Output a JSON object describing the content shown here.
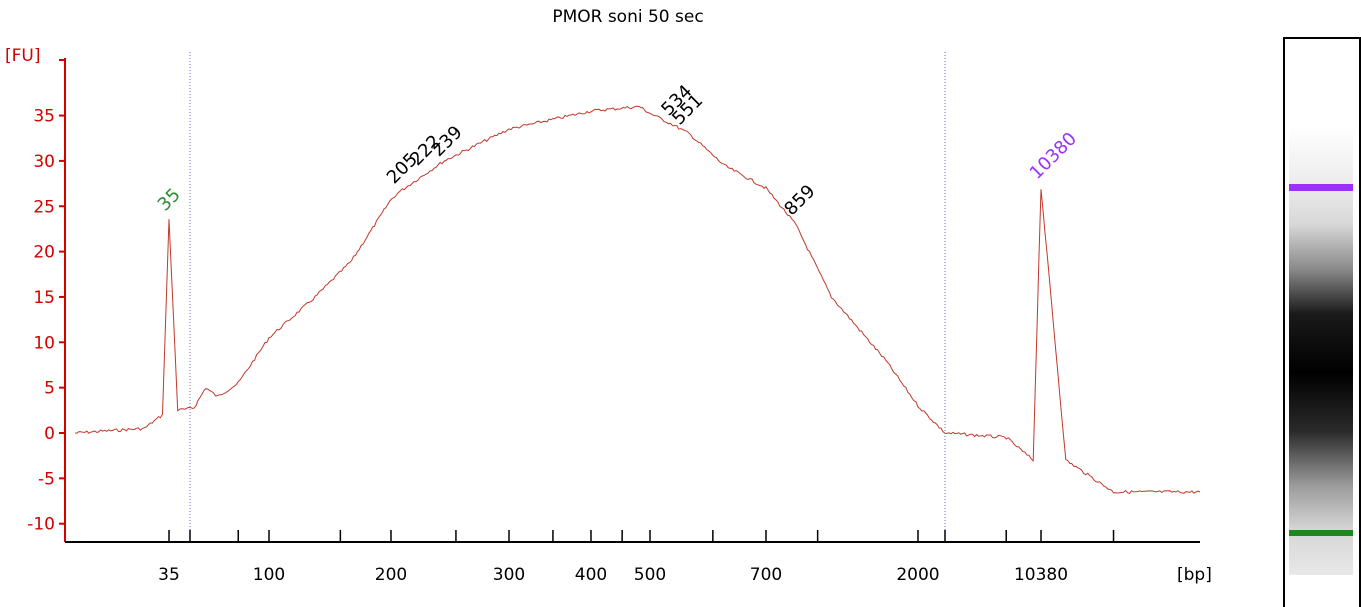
{
  "chart_data": {
    "type": "line",
    "title": "PMOR soni 50 sec",
    "ylabel": "[FU]",
    "xlabel": "[bp]",
    "ylim": [
      -11,
      38
    ],
    "yticks": [
      {
        "value": 35,
        "label": "35"
      },
      {
        "value": 30,
        "label": "30"
      },
      {
        "value": 25,
        "label": "25"
      },
      {
        "value": 20,
        "label": "20"
      },
      {
        "value": 15,
        "label": "15"
      },
      {
        "value": 10,
        "label": "10"
      },
      {
        "value": 5,
        "label": "5"
      },
      {
        "value": 0,
        "label": "0"
      },
      {
        "value": -5,
        "label": "-5"
      },
      {
        "value": -10,
        "label": "-10"
      }
    ],
    "xticks": [
      {
        "bp": 35,
        "label": "35"
      },
      {
        "bp": 100,
        "label": "100"
      },
      {
        "bp": 200,
        "label": "200"
      },
      {
        "bp": 300,
        "label": "300"
      },
      {
        "bp": 400,
        "label": "400"
      },
      {
        "bp": 500,
        "label": "500"
      },
      {
        "bp": 700,
        "label": "700"
      },
      {
        "bp": 2000,
        "label": "2000"
      },
      {
        "bp": 10380,
        "label": "10380"
      }
    ],
    "x_axis_scale": "bp ladder (nonlinear)",
    "region_markers_bp": [
      40,
      3500
    ],
    "series": [
      {
        "color": "#c0392b",
        "points": [
          {
            "bp": 15,
            "fu": 0.0
          },
          {
            "bp": 28,
            "fu": 0.5
          },
          {
            "bp": 33,
            "fu": 2.0
          },
          {
            "bp": 35,
            "fu": 23.5
          },
          {
            "bp": 37,
            "fu": 2.5
          },
          {
            "bp": 42,
            "fu": 2.8
          },
          {
            "bp": 48,
            "fu": 5.0
          },
          {
            "bp": 55,
            "fu": 4.0
          },
          {
            "bp": 70,
            "fu": 5.5
          },
          {
            "bp": 100,
            "fu": 10.5
          },
          {
            "bp": 130,
            "fu": 15.0
          },
          {
            "bp": 160,
            "fu": 19.0
          },
          {
            "bp": 205,
            "fu": 26.5
          },
          {
            "bp": 240,
            "fu": 30.0
          },
          {
            "bp": 300,
            "fu": 33.5
          },
          {
            "bp": 400,
            "fu": 35.5
          },
          {
            "bp": 480,
            "fu": 36.0
          },
          {
            "bp": 534,
            "fu": 34.0
          },
          {
            "bp": 560,
            "fu": 33.0
          },
          {
            "bp": 620,
            "fu": 29.5
          },
          {
            "bp": 700,
            "fu": 27.0
          },
          {
            "bp": 859,
            "fu": 23.0
          },
          {
            "bp": 1100,
            "fu": 15.0
          },
          {
            "bp": 1600,
            "fu": 8.0
          },
          {
            "bp": 2000,
            "fu": 3.0
          },
          {
            "bp": 3500,
            "fu": 0.0
          },
          {
            "bp": 7000,
            "fu": -0.5
          },
          {
            "bp": 9500,
            "fu": -3.0
          },
          {
            "bp": 10380,
            "fu": 27.0
          },
          {
            "bp": 11500,
            "fu": -3.0
          },
          {
            "bp": 14000,
            "fu": -6.5
          },
          {
            "bp": 20000,
            "fu": -6.5
          }
        ]
      }
    ],
    "peaks": [
      {
        "label": "35",
        "bp": 35,
        "fu": 23.5,
        "color": "#2e8b2e"
      },
      {
        "label": "205",
        "bp": 205,
        "fu": 26.5,
        "color": "#000000"
      },
      {
        "label": "222",
        "bp": 222,
        "fu": 28.5,
        "color": "#000000"
      },
      {
        "label": "239",
        "bp": 239,
        "fu": 29.5,
        "color": "#000000"
      },
      {
        "label": "534",
        "bp": 534,
        "fu": 34.0,
        "color": "#000000"
      },
      {
        "label": "551",
        "bp": 551,
        "fu": 33.0,
        "color": "#000000"
      },
      {
        "label": "859",
        "bp": 859,
        "fu": 23.0,
        "color": "#000000"
      },
      {
        "label": "10380",
        "bp": 10380,
        "fu": 27.0,
        "color": "#9b30ff"
      }
    ]
  },
  "gel_lane": {
    "lower_marker_color": "#1a8a1a",
    "upper_marker_color": "#9b30ff"
  }
}
